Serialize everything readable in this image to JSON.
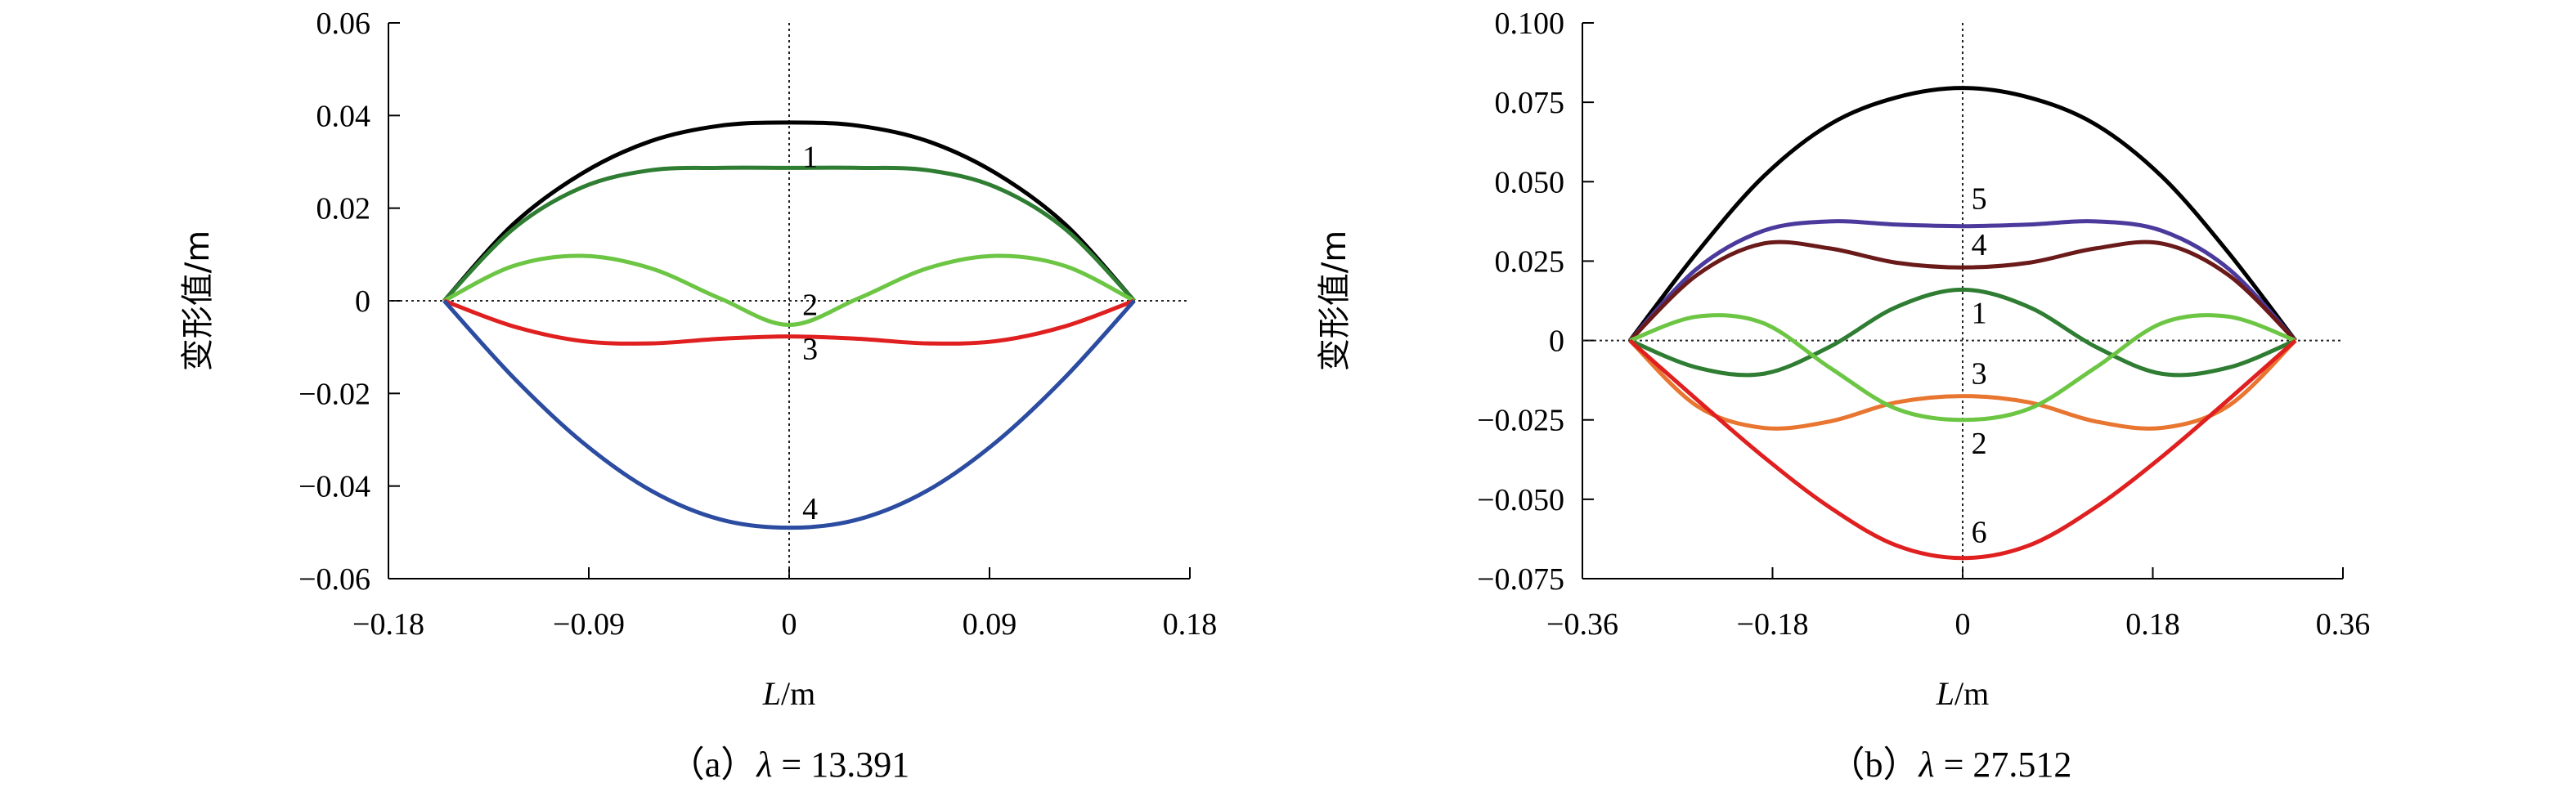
{
  "chart_data": [
    {
      "type": "line",
      "caption": "（a）λ = 13.391",
      "xlabel": "L/m",
      "ylabel": "变形值/m",
      "xlim": [
        -0.18,
        0.18
      ],
      "ylim": [
        -0.06,
        0.06
      ],
      "xticks": [
        -0.18,
        -0.09,
        0,
        0.09,
        0.18
      ],
      "xtick_labels": [
        "−0.18",
        "−0.09",
        "0",
        "0.09",
        "0.18"
      ],
      "yticks": [
        -0.06,
        -0.04,
        -0.02,
        0,
        0.02,
        0.04,
        0.06
      ],
      "ytick_labels": [
        "−0.06",
        "−0.04",
        "−0.02",
        "0",
        "0.02",
        "0.04",
        "0.06"
      ],
      "x": [
        -0.155,
        -0.124,
        -0.093,
        -0.062,
        -0.031,
        0,
        0.031,
        0.062,
        0.093,
        0.124,
        0.155
      ],
      "series": [
        {
          "name": "black",
          "color": "#000000",
          "values": [
            0,
            0.0165,
            0.0275,
            0.0345,
            0.0378,
            0.0385,
            0.0378,
            0.0345,
            0.0275,
            0.0165,
            0
          ]
        },
        {
          "name": "1",
          "color": "#2E7D32",
          "values": [
            0,
            0.0155,
            0.0245,
            0.0282,
            0.0287,
            0.0287,
            0.0287,
            0.0282,
            0.0245,
            0.0155,
            0
          ]
        },
        {
          "name": "green",
          "color": "#6CC644",
          "values": [
            0,
            0.0075,
            0.0097,
            0.007,
            0.0005,
            -0.0052,
            0.0005,
            0.007,
            0.0097,
            0.0075,
            0
          ]
        },
        {
          "name": "3",
          "color": "#E02020",
          "values": [
            0,
            -0.0055,
            -0.0087,
            -0.0092,
            -0.0082,
            -0.0077,
            -0.0082,
            -0.0092,
            -0.0087,
            -0.0055,
            0
          ]
        },
        {
          "name": "4",
          "color": "#2B4CA0",
          "values": [
            0,
            -0.0165,
            -0.0305,
            -0.041,
            -0.0472,
            -0.049,
            -0.0472,
            -0.041,
            -0.0305,
            -0.0165,
            0
          ]
        }
      ],
      "annotations": [
        {
          "text": "1",
          "x": 0.003,
          "y": 0.031
        },
        {
          "text": "2",
          "x": 0.003,
          "y": -0.001
        },
        {
          "text": "3",
          "x": 0.003,
          "y": -0.0105
        },
        {
          "text": "4",
          "x": 0.003,
          "y": -0.045
        }
      ]
    },
    {
      "type": "line",
      "caption": "（b）λ = 27.512",
      "xlabel": "L/m",
      "ylabel": "变形值/m",
      "xlim": [
        -0.36,
        0.36
      ],
      "ylim": [
        -0.075,
        0.1
      ],
      "xticks": [
        -0.36,
        -0.18,
        0,
        0.18,
        0.36
      ],
      "xtick_labels": [
        "−0.36",
        "−0.18",
        "0",
        "0.18",
        "0.36"
      ],
      "yticks": [
        -0.075,
        -0.05,
        -0.025,
        0,
        0.025,
        0.05,
        0.075,
        0.1
      ],
      "ytick_labels": [
        "−0.075",
        "−0.050",
        "−0.025",
        "0",
        "0.025",
        "0.050",
        "0.075",
        "0.100"
      ],
      "x": [
        -0.315,
        -0.252,
        -0.189,
        -0.126,
        -0.063,
        0,
        0.063,
        0.126,
        0.189,
        0.252,
        0.315
      ],
      "series": [
        {
          "name": "black",
          "color": "#000000",
          "values": [
            0,
            0.0275,
            0.0515,
            0.068,
            0.0765,
            0.0795,
            0.0765,
            0.068,
            0.0515,
            0.0275,
            0
          ]
        },
        {
          "name": "5",
          "color": "#4B3A9C",
          "values": [
            0,
            0.0225,
            0.0345,
            0.0375,
            0.0365,
            0.036,
            0.0365,
            0.0375,
            0.0345,
            0.0225,
            0
          ]
        },
        {
          "name": "4",
          "color": "#6B1A1A",
          "values": [
            0,
            0.0205,
            0.0305,
            0.029,
            0.0245,
            0.023,
            0.0245,
            0.029,
            0.0305,
            0.0205,
            0
          ]
        },
        {
          "name": "1",
          "color": "#2E7D32",
          "values": [
            0,
            -0.0085,
            -0.0105,
            -0.002,
            0.0105,
            0.016,
            0.0105,
            -0.002,
            -0.0105,
            -0.0085,
            0
          ]
        },
        {
          "name": "3",
          "color": "#E87530",
          "values": [
            0,
            -0.0205,
            -0.0275,
            -0.0255,
            -0.0195,
            -0.0175,
            -0.0195,
            -0.0255,
            -0.0275,
            -0.0205,
            0
          ]
        },
        {
          "name": "2",
          "color": "#6CC644",
          "values": [
            0,
            0.0075,
            0.0055,
            -0.0085,
            -0.0215,
            -0.025,
            -0.0215,
            -0.0085,
            0.0055,
            0.0075,
            0
          ]
        },
        {
          "name": "6",
          "color": "#E02020",
          "values": [
            0,
            -0.0185,
            -0.0365,
            -0.0525,
            -0.0645,
            -0.0685,
            -0.0645,
            -0.0525,
            -0.0365,
            -0.0185,
            0
          ]
        }
      ],
      "annotations": [
        {
          "text": "5",
          "x": 0.002,
          "y": 0.0445
        },
        {
          "text": "4",
          "x": 0.002,
          "y": 0.03
        },
        {
          "text": "1",
          "x": 0.002,
          "y": 0.0085
        },
        {
          "text": "3",
          "x": 0.002,
          "y": -0.0105
        },
        {
          "text": "2",
          "x": 0.002,
          "y": -0.0325
        },
        {
          "text": "6",
          "x": 0.002,
          "y": -0.0605
        }
      ]
    }
  ]
}
